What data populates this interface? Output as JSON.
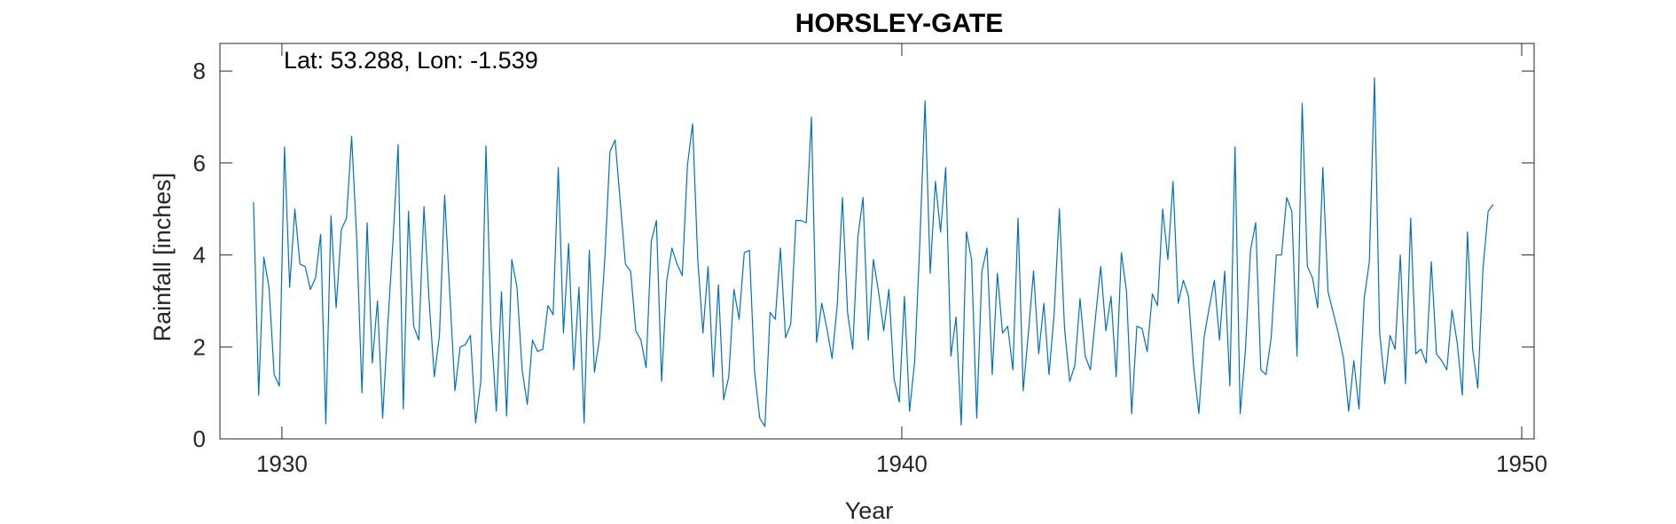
{
  "chart_data": {
    "type": "line",
    "title": "HORSLEY-GATE",
    "annotation": "Lat: 53.288, Lon: -1.539",
    "xlabel": "Year",
    "ylabel": "Rainfall [inches]",
    "xlim": [
      1929,
      1950.2
    ],
    "ylim": [
      0,
      8.6
    ],
    "xticks": [
      1930,
      1940,
      1950
    ],
    "yticks": [
      0,
      2,
      4,
      6,
      8
    ],
    "xtick_labels": [
      "1930",
      "1940",
      "1950"
    ],
    "ytick_labels": [
      "0",
      "2",
      "4",
      "6",
      "8"
    ],
    "grid": false,
    "series": [
      {
        "name": "Rainfall",
        "color": "#0072bd",
        "start": 1929.5417,
        "step": 0.0833333,
        "values": [
          5.15,
          0.95,
          3.95,
          3.3,
          1.4,
          1.15,
          6.35,
          3.3,
          5.0,
          3.8,
          3.75,
          3.25,
          3.5,
          4.45,
          0.33,
          4.85,
          2.85,
          4.55,
          4.8,
          6.58,
          4.3,
          1.0,
          4.7,
          1.65,
          3.0,
          0.45,
          2.5,
          4.3,
          6.4,
          0.65,
          4.95,
          2.45,
          2.15,
          5.05,
          3.0,
          1.35,
          2.25,
          5.3,
          3.15,
          1.05,
          2.0,
          2.05,
          2.25,
          0.35,
          1.25,
          6.37,
          2.4,
          0.6,
          3.2,
          0.5,
          3.9,
          3.3,
          1.5,
          0.75,
          2.15,
          1.9,
          1.95,
          2.9,
          2.7,
          5.9,
          2.3,
          4.25,
          1.5,
          3.3,
          0.35,
          4.1,
          1.45,
          2.2,
          3.9,
          6.25,
          6.5,
          5.15,
          3.8,
          3.65,
          2.35,
          2.15,
          1.55,
          4.3,
          4.75,
          1.25,
          3.45,
          4.15,
          3.8,
          3.55,
          5.95,
          6.85,
          3.9,
          2.3,
          3.75,
          1.35,
          3.35,
          0.85,
          1.35,
          3.25,
          2.6,
          4.05,
          4.1,
          1.45,
          0.45,
          0.27,
          2.75,
          2.6,
          4.15,
          2.2,
          2.5,
          4.75,
          4.75,
          4.7,
          7.0,
          2.1,
          2.95,
          2.4,
          1.75,
          2.9,
          5.25,
          2.75,
          1.95,
          4.4,
          5.25,
          2.15,
          3.9,
          3.2,
          2.35,
          3.25,
          1.3,
          0.8,
          3.1,
          0.6,
          1.7,
          4.3,
          7.35,
          3.6,
          5.6,
          4.5,
          5.9,
          1.8,
          2.65,
          0.3,
          4.5,
          3.9,
          0.45,
          3.65,
          4.15,
          1.4,
          3.6,
          2.3,
          2.45,
          1.5,
          4.8,
          1.05,
          2.3,
          3.65,
          1.85,
          2.95,
          1.4,
          2.75,
          5.0,
          2.4,
          1.25,
          1.6,
          3.05,
          1.8,
          1.5,
          2.65,
          3.75,
          2.35,
          3.1,
          1.35,
          4.05,
          3.2,
          0.55,
          2.45,
          2.4,
          1.9,
          3.15,
          2.9,
          5.0,
          3.9,
          5.6,
          2.95,
          3.45,
          3.1,
          1.55,
          0.55,
          2.2,
          2.85,
          3.45,
          2.15,
          3.65,
          1.15,
          6.35,
          0.55,
          1.9,
          4.1,
          4.7,
          1.5,
          1.4,
          2.2,
          4.0,
          4.0,
          5.25,
          4.95,
          1.8,
          7.3,
          3.75,
          3.5,
          2.85,
          5.9,
          3.2,
          2.75,
          2.3,
          1.75,
          0.6,
          1.7,
          0.65,
          3.05,
          3.85,
          7.85,
          2.3,
          1.2,
          2.25,
          1.95,
          4.0,
          1.2,
          4.8,
          1.85,
          1.95,
          1.65,
          3.85,
          1.85,
          1.7,
          1.5,
          2.8,
          2.1,
          0.95,
          4.5,
          1.95,
          1.1,
          3.7,
          4.95,
          5.1
        ]
      }
    ]
  }
}
